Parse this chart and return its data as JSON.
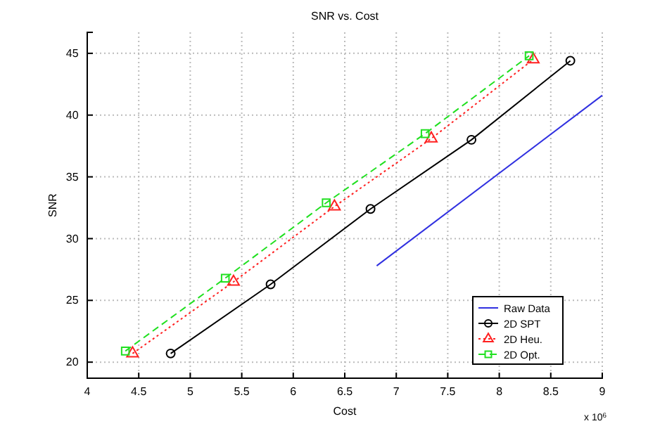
{
  "chart_data": {
    "type": "line",
    "title": "SNR vs. Cost",
    "xlabel": "Cost",
    "ylabel": "SNR",
    "annotations": [
      "x 10$^{6}$"
    ],
    "xlim": [
      4,
      9
    ],
    "xticks": [
      4,
      4.5,
      5,
      5.5,
      6,
      6.5,
      7,
      7.5,
      8,
      8.5,
      9
    ],
    "ylim": [
      18.7,
      46.7
    ],
    "yticks": [
      20,
      25,
      30,
      35,
      40,
      45
    ],
    "grid": true,
    "legend": "bottom right",
    "series": [
      {
        "name": "Raw Data",
        "color": "#3030e0",
        "x": [
          6.81,
          9.0
        ],
        "values": [
          27.8,
          41.6
        ],
        "marker": "none",
        "line_style": "solid"
      },
      {
        "name": "2D SPT",
        "color": "#000000",
        "x": [
          4.81,
          5.78,
          6.75,
          7.73,
          8.69
        ],
        "values": [
          20.7,
          26.3,
          32.4,
          38.0,
          44.4
        ],
        "marker": "circle",
        "line_style": "solid"
      },
      {
        "name": "2D Heu.",
        "color": "#ff2020",
        "x": [
          4.44,
          5.42,
          6.4,
          7.34,
          8.33
        ],
        "values": [
          20.7,
          26.5,
          32.6,
          38.1,
          44.5
        ],
        "marker": "triangle",
        "line_style": "dotted"
      },
      {
        "name": "2D Opt.",
        "color": "#20e020",
        "x": [
          4.37,
          5.34,
          6.32,
          7.28,
          8.29
        ],
        "values": [
          20.9,
          26.8,
          32.9,
          38.5,
          44.8
        ],
        "marker": "square",
        "line_style": "dashed"
      }
    ]
  }
}
